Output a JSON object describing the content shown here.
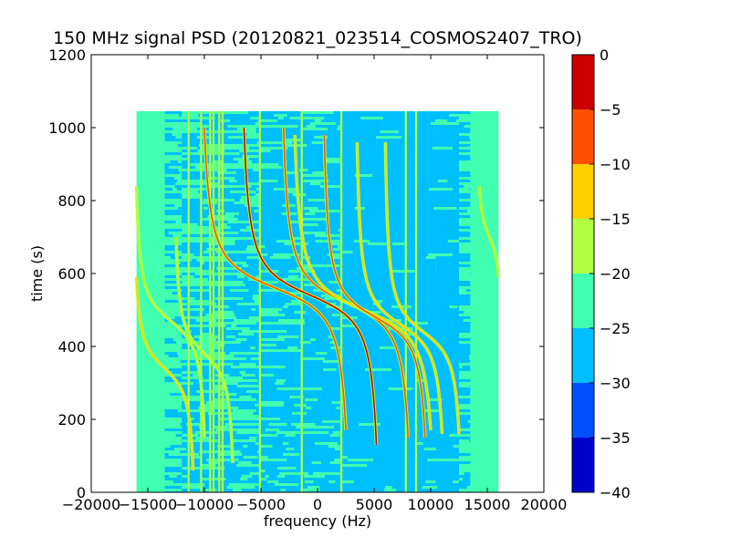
{
  "chart_data": {
    "type": "heatmap",
    "title": "150 MHz signal PSD (20120821_023514_COSMOS2407_TRO)",
    "xlabel": "frequency (Hz)",
    "ylabel": "time (s)",
    "xlim": [
      -20000,
      20000
    ],
    "ylim": [
      0,
      1200
    ],
    "x_ticks": [
      -20000,
      -15000,
      -10000,
      -5000,
      0,
      5000,
      10000,
      15000,
      20000
    ],
    "y_ticks": [
      0,
      200,
      400,
      600,
      800,
      1000,
      1200
    ],
    "data_extent": {
      "x": [
        -16000,
        16000
      ],
      "y": [
        0,
        1045
      ]
    },
    "grid": false,
    "colorbar": {
      "range": [
        -40,
        0
      ],
      "ticks": [
        0,
        -5,
        -10,
        -15,
        -20,
        -25,
        -30,
        -35,
        -40
      ],
      "levels": [
        {
          "from": -40,
          "to": -35,
          "color": "#0000cd"
        },
        {
          "from": -35,
          "to": -30,
          "color": "#0050ff"
        },
        {
          "from": -30,
          "to": -25,
          "color": "#00bfff"
        },
        {
          "from": -25,
          "to": -20,
          "color": "#40ffb0"
        },
        {
          "from": -20,
          "to": -15,
          "color": "#b0ff40"
        },
        {
          "from": -15,
          "to": -10,
          "color": "#ffd000"
        },
        {
          "from": -10,
          "to": -5,
          "color": "#ff5000"
        },
        {
          "from": -5,
          "to": 0,
          "color": "#cd0000"
        }
      ]
    },
    "vertical_lines_hz": [
      -11400,
      -10300,
      -9500,
      -9200,
      -8700,
      -8400,
      -5100,
      -1400,
      2100,
      7800,
      8700
    ],
    "doppler_traces": [
      {
        "f_start": 2500,
        "f_end": -10000,
        "t_start": 170,
        "t_end": 1000,
        "t_mid": 560,
        "level": -10
      },
      {
        "f_start": 5200,
        "f_end": -6500,
        "t_start": 130,
        "t_end": 1000,
        "t_mid": 540,
        "level": -5
      },
      {
        "f_start": 8000,
        "f_end": -3000,
        "t_start": 150,
        "t_end": 1000,
        "t_mid": 520,
        "level": -8
      },
      {
        "f_start": 10000,
        "f_end": -2000,
        "t_start": 170,
        "t_end": 980,
        "t_mid": 500,
        "level": -12
      },
      {
        "f_start": 9500,
        "f_end": 600,
        "t_start": 150,
        "t_end": 980,
        "t_mid": 480,
        "level": -8
      },
      {
        "f_start": 11000,
        "f_end": 3500,
        "t_start": 160,
        "t_end": 960,
        "t_mid": 460,
        "level": -12
      },
      {
        "f_start": 12500,
        "f_end": 6000,
        "t_start": 160,
        "t_end": 960,
        "t_mid": 440,
        "level": -15
      },
      {
        "f_start": -11000,
        "f_end": -16000,
        "t_start": 60,
        "t_end": 590,
        "t_mid": 340,
        "level": -15
      },
      {
        "f_start": -10000,
        "f_end": -16000,
        "t_start": 150,
        "t_end": 840,
        "t_mid": 470,
        "level": -17
      },
      {
        "f_start": -7500,
        "f_end": -12500,
        "t_start": 80,
        "t_end": 700,
        "t_mid": 380,
        "level": -18
      },
      {
        "f_start": 16000,
        "f_end": 14300,
        "t_start": 590,
        "t_end": 840,
        "t_mid": 700,
        "level": -18
      }
    ]
  }
}
